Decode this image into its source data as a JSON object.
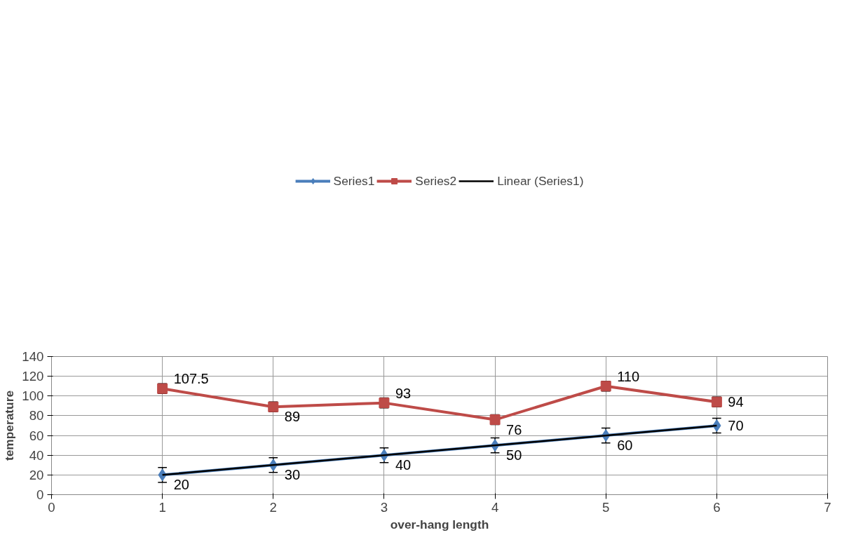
{
  "chart_data": {
    "type": "line",
    "xlabel": "over-hang length",
    "ylabel": "temperature",
    "x": [
      1,
      2,
      3,
      4,
      5,
      6
    ],
    "xlim": [
      0,
      7
    ],
    "xticks": [
      0,
      1,
      2,
      3,
      4,
      5,
      6,
      7
    ],
    "ylim": [
      0,
      140
    ],
    "yticks": [
      0,
      20,
      40,
      60,
      80,
      100,
      120,
      140
    ],
    "grid": true,
    "legend": "top",
    "series": [
      {
        "name": "Series1",
        "color": "#4a7ebb",
        "marker": "diamond",
        "values": [
          20,
          30,
          40,
          50,
          60,
          70
        ],
        "value_labels": [
          "20",
          "30",
          "40",
          "50",
          "60",
          "70"
        ],
        "errors": [
          7.5,
          7.5,
          7.5,
          7.5,
          7.5,
          7.5
        ]
      },
      {
        "name": "Series2",
        "color": "#be4b48",
        "marker": "square",
        "values": [
          107.5,
          89,
          93,
          76,
          110,
          94
        ],
        "value_labels": [
          "107.5",
          "89",
          "93",
          "76",
          "110",
          "94"
        ],
        "errors": [
          5,
          5,
          5,
          5,
          5,
          5
        ]
      },
      {
        "name": "Linear (Series1)",
        "color": "#000000",
        "marker": "none",
        "type": "line",
        "x": [
          1,
          6
        ],
        "values": [
          20,
          70
        ]
      }
    ]
  }
}
